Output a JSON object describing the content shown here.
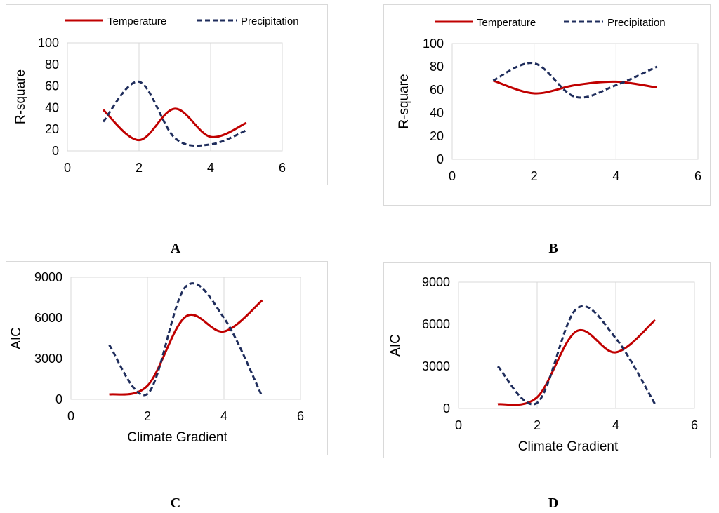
{
  "legend": {
    "temperature": "Temperature",
    "precipitation": "Precipitation"
  },
  "colors": {
    "temperature": "#c00000",
    "precipitation": "#1f2d5c",
    "grid": "#d9d9d9",
    "text": "#000000"
  },
  "chart_data": [
    {
      "id": "A",
      "type": "line",
      "title": "",
      "xlabel": "",
      "ylabel": "R-square",
      "xlim": [
        0,
        6
      ],
      "ylim": [
        0,
        100
      ],
      "xticks": [
        "0",
        "2",
        "4",
        "6"
      ],
      "yticks": [
        "0",
        "20",
        "40",
        "60",
        "80",
        "100"
      ],
      "legend_position": "top",
      "x": [
        1,
        2,
        3,
        4,
        5
      ],
      "series": [
        {
          "name": "Temperature",
          "values": [
            38,
            10,
            39,
            13,
            26
          ]
        },
        {
          "name": "Precipitation",
          "values": [
            27,
            64,
            12,
            6,
            19
          ]
        }
      ],
      "caption": "A"
    },
    {
      "id": "B",
      "type": "line",
      "title": "",
      "xlabel": "",
      "ylabel": "R-square",
      "xlim": [
        0,
        6
      ],
      "ylim": [
        0,
        100
      ],
      "xticks": [
        "0",
        "2",
        "4",
        "6"
      ],
      "yticks": [
        "0",
        "20",
        "40",
        "60",
        "80",
        "100"
      ],
      "legend_position": "top",
      "x": [
        1,
        2,
        3,
        4,
        5
      ],
      "series": [
        {
          "name": "Temperature",
          "values": [
            68,
            57,
            64,
            67,
            62
          ]
        },
        {
          "name": "Precipitation",
          "values": [
            68,
            83,
            54,
            64,
            80
          ]
        }
      ],
      "caption": "B"
    },
    {
      "id": "C",
      "type": "line",
      "title": "",
      "xlabel": "Climate Gradient",
      "ylabel": "AIC",
      "xlim": [
        0,
        6
      ],
      "ylim": [
        0,
        9000
      ],
      "xticks": [
        "0",
        "2",
        "4",
        "6"
      ],
      "yticks": [
        "0",
        "3000",
        "6000",
        "9000"
      ],
      "legend_position": "none",
      "x": [
        1,
        2,
        3,
        4,
        5
      ],
      "series": [
        {
          "name": "Temperature",
          "values": [
            350,
            1000,
            6100,
            5000,
            7300
          ]
        },
        {
          "name": "Precipitation",
          "values": [
            4000,
            400,
            8300,
            6000,
            200
          ]
        }
      ],
      "caption": "C"
    },
    {
      "id": "D",
      "type": "line",
      "title": "",
      "xlabel": "Climate Gradient",
      "ylabel": "AIC",
      "xlim": [
        0,
        6
      ],
      "ylim": [
        0,
        9000
      ],
      "xticks": [
        "0",
        "2",
        "4",
        "6"
      ],
      "yticks": [
        "0",
        "3000",
        "6000",
        "9000"
      ],
      "legend_position": "none",
      "x": [
        1,
        2,
        3,
        4,
        5
      ],
      "series": [
        {
          "name": "Temperature",
          "values": [
            300,
            800,
            5500,
            4000,
            6300
          ]
        },
        {
          "name": "Precipitation",
          "values": [
            3000,
            400,
            7100,
            5000,
            300
          ]
        }
      ],
      "caption": "D"
    }
  ]
}
